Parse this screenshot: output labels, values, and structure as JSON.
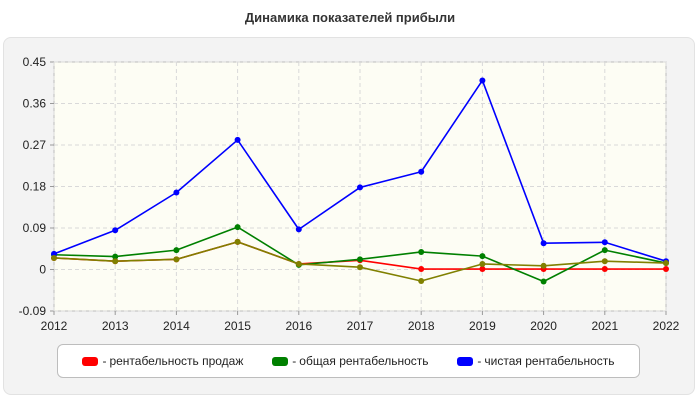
{
  "chart_data": {
    "type": "line",
    "title": "Динамика показателей прибыли",
    "x": [
      "2012",
      "2013",
      "2014",
      "2015",
      "2016",
      "2017",
      "2018",
      "2019",
      "2020",
      "2021",
      "2022"
    ],
    "y_ticks": [
      "0.45",
      "0.36",
      "0.27",
      "0.18",
      "0.09",
      "0",
      "-0.09"
    ],
    "ylim": [
      -0.09,
      0.45
    ],
    "grid": true,
    "legend_position": "bottom",
    "series": [
      {
        "name": "рентабельность продаж",
        "color": "#ff0000",
        "values": [
          0.025,
          0.018,
          0.022,
          0.06,
          0.012,
          0.02,
          0.001,
          0.001,
          0.001,
          0.001,
          0.001
        ]
      },
      {
        "name": "общая рентабельность",
        "color": "#008000",
        "values": [
          0.032,
          0.028,
          0.042,
          0.092,
          0.01,
          0.022,
          0.038,
          0.029,
          -0.026,
          0.042,
          0.014
        ]
      },
      {
        "name": "чистая рентабельность",
        "color": "#0000ff",
        "values": [
          0.034,
          0.085,
          0.167,
          0.281,
          0.087,
          0.178,
          0.212,
          0.41,
          0.057,
          0.059,
          0.018
        ]
      }
    ],
    "overlap_color": "#808000",
    "overlap_values": [
      0.025,
      0.018,
      0.022,
      0.06,
      0.012,
      0.005,
      -0.025,
      0.012,
      0.008,
      0.018,
      0.014
    ]
  }
}
